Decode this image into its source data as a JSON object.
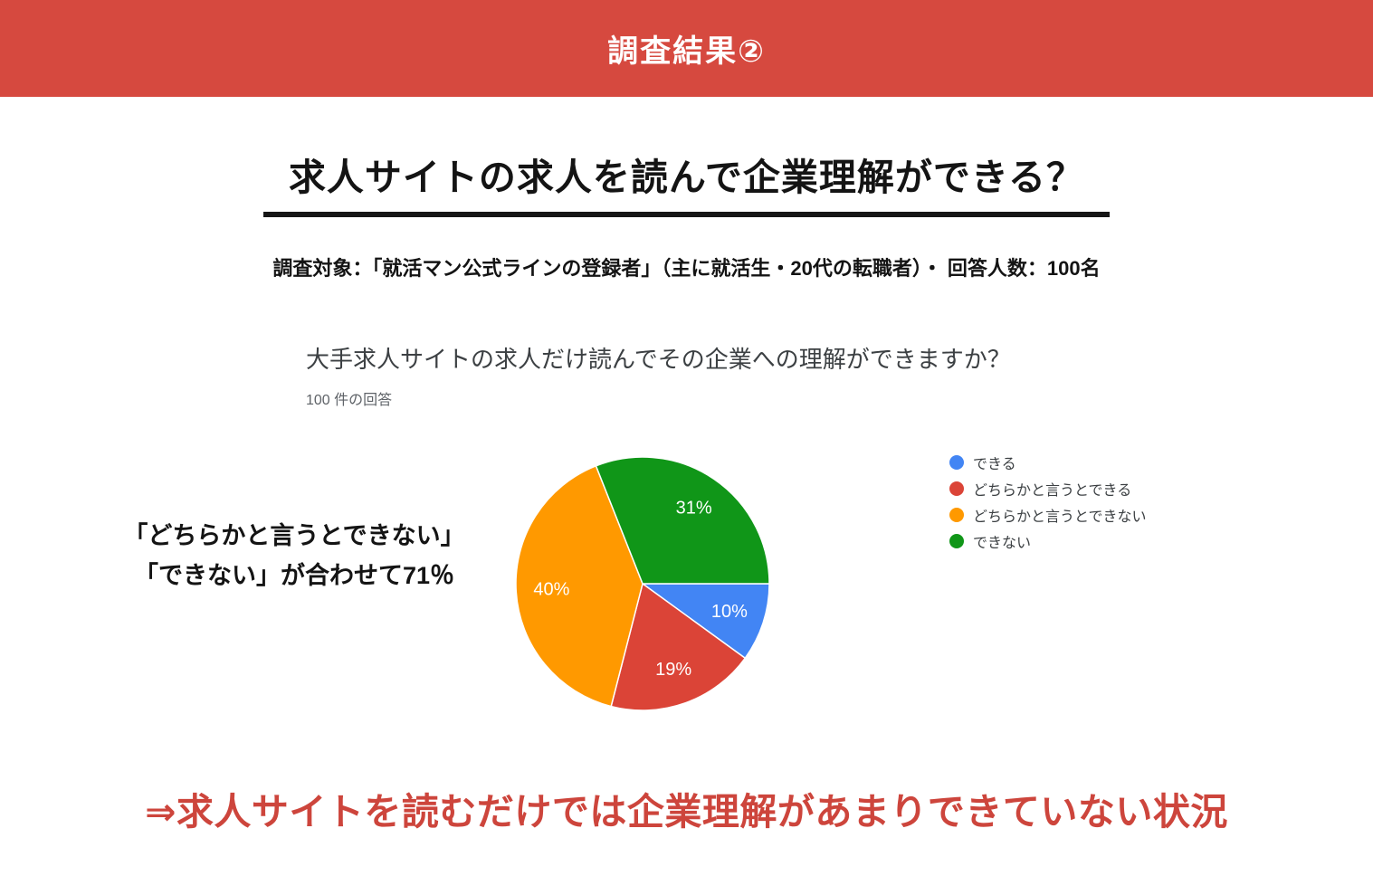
{
  "colors": {
    "banner_red": "#d6493f",
    "conclusion_red": "#cd453c",
    "title_text": "#141414",
    "question_text": "#3c4043",
    "responses_text": "#5f6368"
  },
  "header": {
    "title": "調査結果②"
  },
  "main": {
    "title": "求人サイトの求人を読んで企業理解ができる？",
    "subtitle": "調査対象：「就活マン公式ラインの登録者」（主に就活生・20代の転職者）・ 回答人数：100名",
    "annotation": {
      "line1": "「どちらかと言うとできない」",
      "line2": "「できない」が合わせて71％"
    },
    "conclusion": "⇒求人サイトを読むだけでは企業理解があまりできていない状況"
  },
  "chart_data": {
    "type": "pie",
    "title": "大手求人サイトの求人だけ読んでその企業への理解ができますか？",
    "subtitle": "100 件の回答",
    "total_responses": 100,
    "categories": [
      "できる",
      "どちらかと言うとできる",
      "どちらかと言うとできない",
      "できない"
    ],
    "values": [
      10,
      19,
      40,
      31
    ],
    "percent_labels": [
      "10%",
      "19%",
      "40%",
      "31%"
    ],
    "colors": [
      "#4285f4",
      "#db4437",
      "#ff9900",
      "#109618"
    ],
    "legend_position": "right",
    "start_angle_deg": 0,
    "direction": "clockwise",
    "label_radius_ratio": 0.72
  }
}
